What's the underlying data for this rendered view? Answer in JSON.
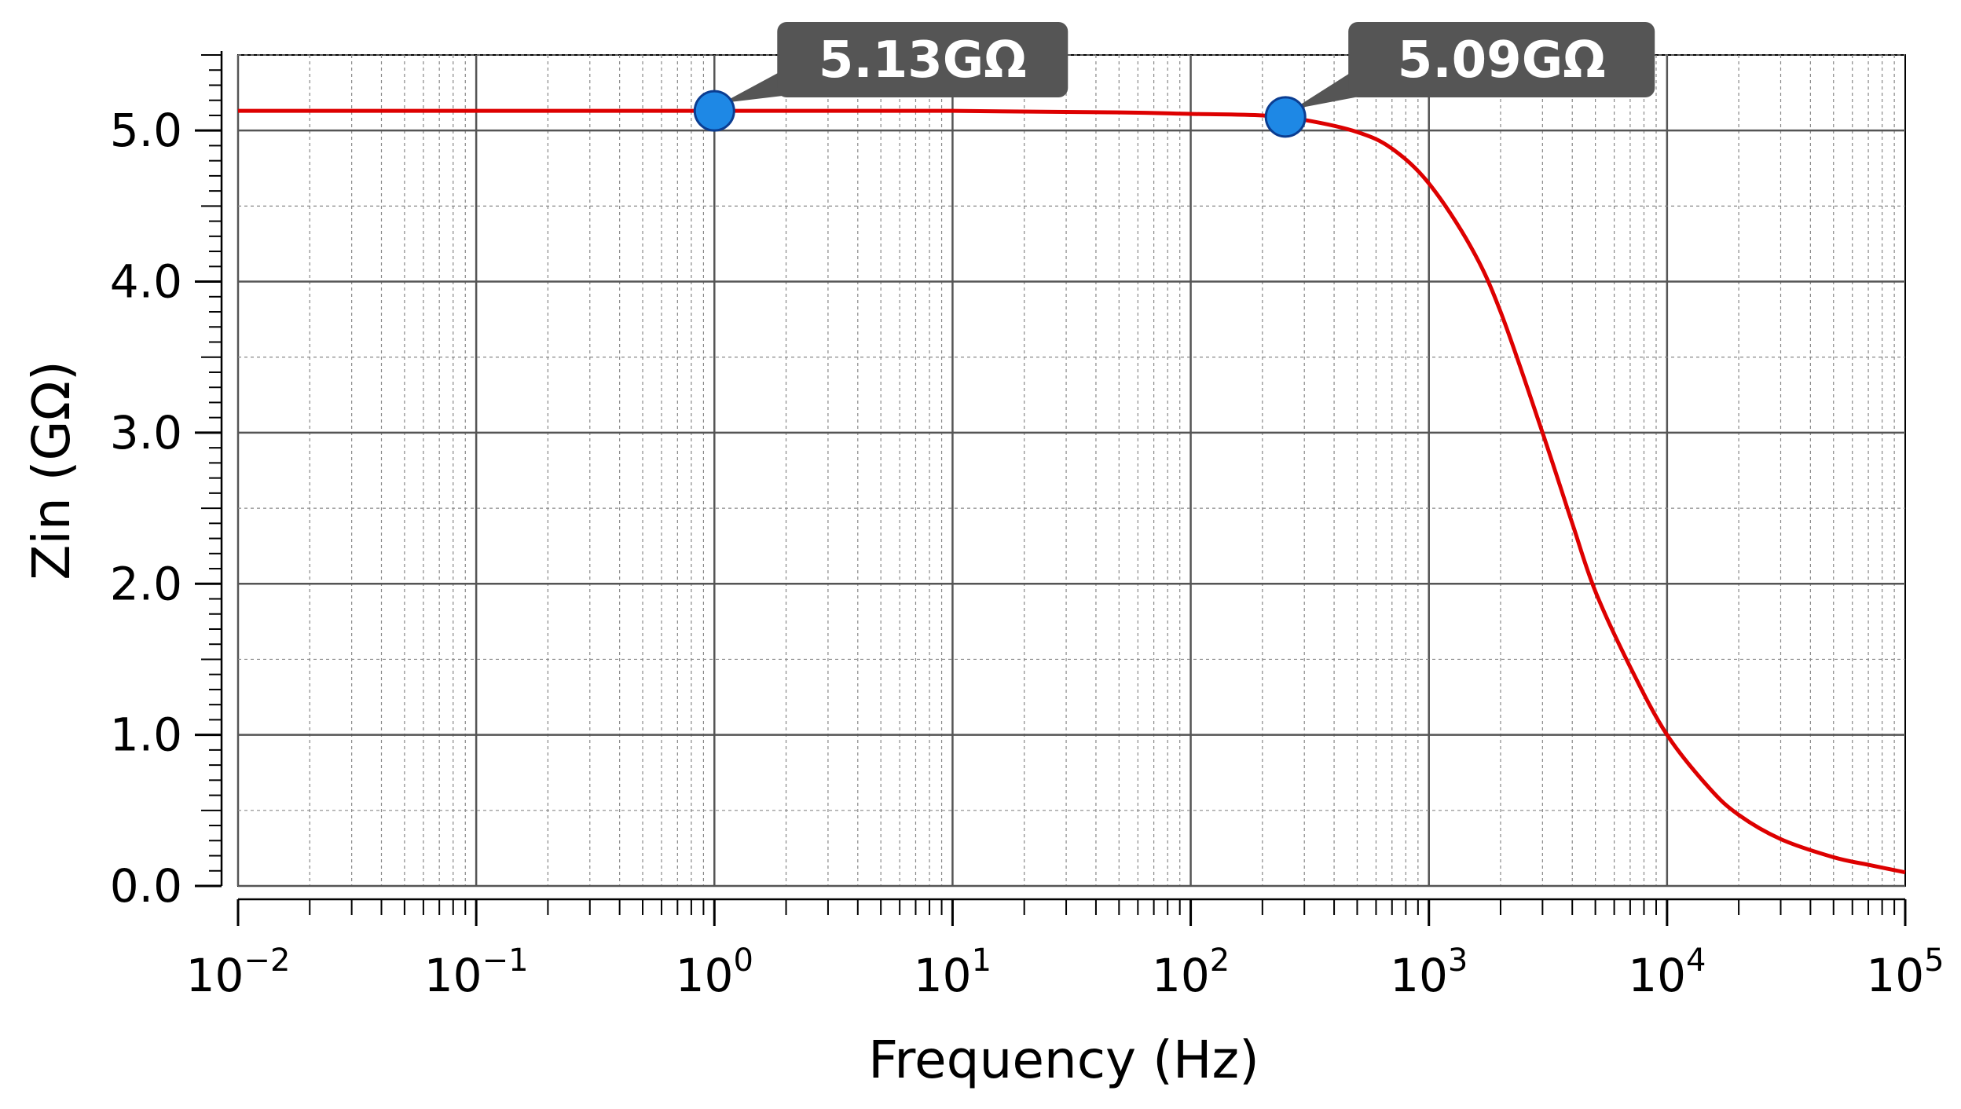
{
  "chart_data": {
    "type": "line",
    "title": "",
    "xlabel": "Frequency (Hz)",
    "ylabel": "Zin (GΩ)",
    "xscale": "log",
    "xlim": [
      0.01,
      100000
    ],
    "ylim": [
      0,
      5.5
    ],
    "grid": true,
    "x_ticks": [
      {
        "base": "10",
        "exp": "−2"
      },
      {
        "base": "10",
        "exp": "−1"
      },
      {
        "base": "10",
        "exp": "0"
      },
      {
        "base": "10",
        "exp": "1"
      },
      {
        "base": "10",
        "exp": "2"
      },
      {
        "base": "10",
        "exp": "3"
      },
      {
        "base": "10",
        "exp": "4"
      },
      {
        "base": "10",
        "exp": "5"
      }
    ],
    "y_ticks": [
      "0.0",
      "1.0",
      "2.0",
      "3.0",
      "4.0",
      "5.0"
    ],
    "y_tick_values": [
      0,
      1,
      2,
      3,
      4,
      5
    ],
    "series": [
      {
        "color": "#dd0000",
        "x": [
          0.01,
          0.1,
          1,
          10,
          50,
          100,
          200,
          300,
          500,
          700,
          1000,
          1500,
          2000,
          3000,
          4000,
          5000,
          7000,
          10000,
          15000,
          20000,
          30000,
          50000,
          70000,
          100000
        ],
        "y": [
          5.13,
          5.13,
          5.13,
          5.13,
          5.12,
          5.11,
          5.1,
          5.07,
          4.99,
          4.88,
          4.65,
          4.23,
          3.8,
          3.0,
          2.4,
          1.95,
          1.45,
          1.0,
          0.65,
          0.47,
          0.31,
          0.19,
          0.14,
          0.09
        ]
      }
    ],
    "markers": [
      {
        "x": 1,
        "y": 5.13,
        "label": "5.13GΩ",
        "color": "#1e88e5"
      },
      {
        "x": 250,
        "y": 5.09,
        "label": "5.09GΩ",
        "color": "#1e88e5"
      }
    ],
    "callout_color": "#555555"
  }
}
